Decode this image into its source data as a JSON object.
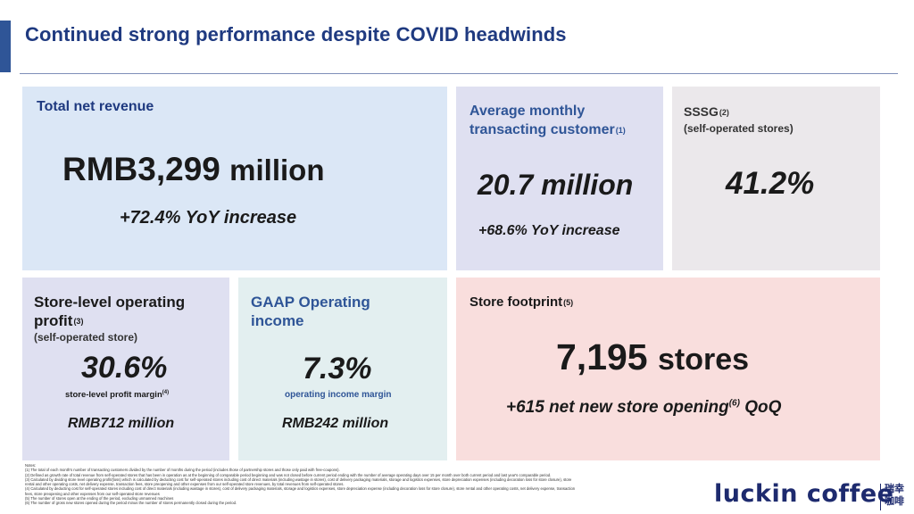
{
  "slide": {
    "title": "Continued strong performance despite COVID headwinds"
  },
  "colors": {
    "accent": "#2f5597",
    "title": "#1f3a80",
    "card_blue": "#dbe7f6",
    "card_lavender": "#dfe0f1",
    "card_grey": "#ebe8eb",
    "card_teal": "#e3eff0",
    "card_pink": "#f9dedd"
  },
  "revenue": {
    "label": "Total net revenue",
    "value": "RMB3,299",
    "unit": "million",
    "change": "+72.4% YoY increase"
  },
  "mtc": {
    "label_line1": "Average monthly",
    "label_line2": "transacting customer",
    "footnote": "(1)",
    "value": "20.7 million",
    "change": "+68.6% YoY increase"
  },
  "sssg": {
    "label": "SSSG",
    "footnote": "(2)",
    "sublabel": "(self-operated stores)",
    "value": "41.2%"
  },
  "slop": {
    "label_line1": "Store-level operating",
    "label_line2": "profit",
    "footnote": "(3)",
    "sublabel": "(self-operated store)",
    "value": "30.6%",
    "caption": "store-level profit margin",
    "caption_footnote": "(4)",
    "amount": "RMB712 million"
  },
  "gaap": {
    "label_line1": "GAAP Operating",
    "label_line2": "income",
    "value": "7.3%",
    "caption": "operating income margin",
    "amount": "RMB242 million"
  },
  "footprint": {
    "label": "Store footprint",
    "footnote": "(5)",
    "value": "7,195",
    "unit": "stores",
    "change_prefix": "+615 net new store opening",
    "change_footnote": "(6)",
    "change_suffix": "QoQ"
  },
  "notes": {
    "heading": "Notes:",
    "n1": "(1) The total of each month's number of transacting customers divided by the number of months during the period (includes those of partnership stores and those only paid with free-coupons).",
    "n2": "(2) Defined as growth rate of total revenue from self-operated stores that has been in operation as at the beginning of comparable period beginning and was not closed before current period ending with the number of average operating days over 15 per month over both current period and last year's comparable period.",
    "n3a": "(3) Calculated by dividing store level operating profit/(loss) which is calculated by deducting cost for self-operated stores including cost of direct materials (including wastage in stores), cost of delivery packaging materials, storage and logistics expenses, store depreciation expenses (including decoration loss for store closure), store",
    "n3b": "rental and other operating costs, net delivery expense, transaction fees, store preopening and other expenses from our self-operated store revenues, by total revenues from self-operated stores.",
    "n4a": "(4) Calculated by deducting cost for self-operated stores including cost of direct materials (including wastage in stores), cost of delivery packaging materials, storage and logistics expenses, store depreciation expense (including decoration loss for store closure), store rental and other operating costs, net delivery expense, transaction",
    "n4b": "fees, store preopening and other expenses from our self-operated store revenues",
    "n5": "(5) The number of stores open at the ending of the period, excluding unmanned machines",
    "n6": "(6) The number of gross new stores opened during the period minus the number of stores permanently closed during the period."
  },
  "logo": {
    "text": "luckin coffee",
    "cn_line1": "瑞幸",
    "cn_line2": "咖啡"
  }
}
